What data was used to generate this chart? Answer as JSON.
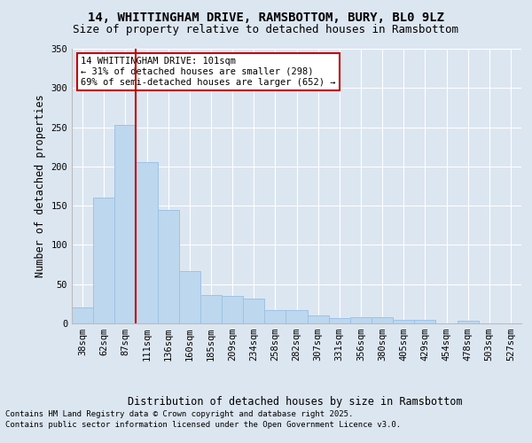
{
  "title1": "14, WHITTINGHAM DRIVE, RAMSBOTTOM, BURY, BL0 9LZ",
  "title2": "Size of property relative to detached houses in Ramsbottom",
  "xlabel": "Distribution of detached houses by size in Ramsbottom",
  "ylabel": "Number of detached properties",
  "categories": [
    "38sqm",
    "62sqm",
    "87sqm",
    "111sqm",
    "136sqm",
    "160sqm",
    "185sqm",
    "209sqm",
    "234sqm",
    "258sqm",
    "282sqm",
    "307sqm",
    "331sqm",
    "356sqm",
    "380sqm",
    "405sqm",
    "429sqm",
    "454sqm",
    "478sqm",
    "503sqm",
    "527sqm"
  ],
  "values": [
    20,
    160,
    253,
    205,
    145,
    67,
    36,
    35,
    32,
    17,
    17,
    10,
    7,
    8,
    8,
    4,
    5,
    0,
    3,
    0,
    0
  ],
  "bar_color": "#bdd7ee",
  "bar_edge_color": "#9dc3e6",
  "vline_x": 2.5,
  "vline_color": "#c00000",
  "annotation_line1": "14 WHITTINGHAM DRIVE: 101sqm",
  "annotation_line2": "← 31% of detached houses are smaller (298)",
  "annotation_line3": "69% of semi-detached houses are larger (652) →",
  "annotation_box_color": "#c00000",
  "ylim": [
    0,
    350
  ],
  "yticks": [
    0,
    50,
    100,
    150,
    200,
    250,
    300,
    350
  ],
  "footer1": "Contains HM Land Registry data © Crown copyright and database right 2025.",
  "footer2": "Contains public sector information licensed under the Open Government Licence v3.0.",
  "background_color": "#dce6f1",
  "plot_bg_color": "#dce6f1",
  "title1_fontsize": 10,
  "title2_fontsize": 9,
  "xlabel_fontsize": 8.5,
  "ylabel_fontsize": 8.5,
  "tick_fontsize": 7.5,
  "footer_fontsize": 6.5,
  "annot_fontsize": 7.5
}
